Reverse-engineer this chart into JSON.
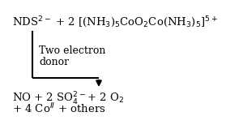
{
  "background_color": "#ffffff",
  "line1_text": "NDS$^{2-}$ + 2 [(NH$_3$)$_5$CoO$_2$Co(NH$_3$)$_5$]$^{5+}$",
  "arrow_label_line1": "Two electron",
  "arrow_label_line2": "donor",
  "line2_text": "NO + 2 SO$_4^{2-}$+ 2 O$_2$",
  "line3_text": "+ 4 Co$^{II}$ + others",
  "text_color": "#000000",
  "arrow_color": "#000000",
  "fontsize_main": 9.5,
  "fontsize_label": 9.0,
  "lw": 1.5
}
